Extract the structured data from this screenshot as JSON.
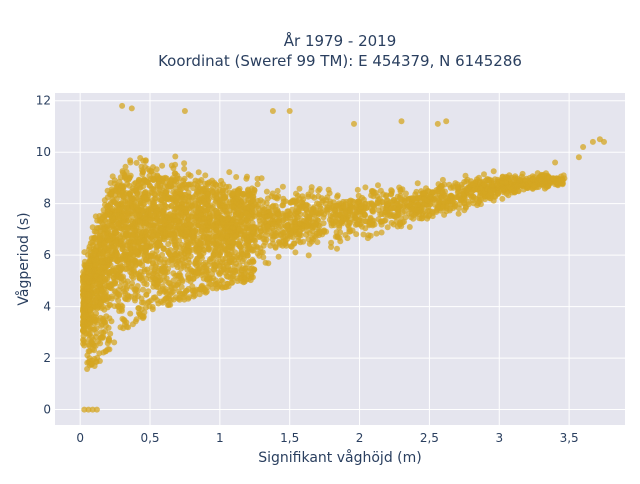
{
  "chart_data": {
    "type": "scatter",
    "title_line1": "År 1979 - 2019",
    "title_line2": "Koordinat (Sweref 99 TM): E 454379, N 6145286",
    "xlabel": "Signifikant våghöjd (m)",
    "ylabel": "Vågperiod (s)",
    "xlim": [
      -0.18,
      3.9
    ],
    "ylim": [
      -0.6,
      12.3
    ],
    "x_ticks": [
      0,
      0.5,
      1,
      1.5,
      2,
      2.5,
      3,
      3.5
    ],
    "x_tick_labels": [
      "0",
      "0,5",
      "1",
      "1,5",
      "2",
      "2,5",
      "3",
      "3,5"
    ],
    "y_ticks": [
      0,
      2,
      4,
      6,
      8,
      10,
      12
    ],
    "y_tick_labels": [
      "0",
      "2",
      "4",
      "6",
      "8",
      "10",
      "12"
    ],
    "grid": true,
    "marker_color": "#d4a521",
    "plot_bg": "#e5e5ee",
    "envelope": {
      "description_of_point_cloud": "dense cloud of hourly observations",
      "lower_bound": [
        [
          0.0,
          1.1
        ],
        [
          0.1,
          1.2
        ],
        [
          0.2,
          1.8
        ],
        [
          0.3,
          2.6
        ],
        [
          0.5,
          3.3
        ],
        [
          0.75,
          3.9
        ],
        [
          1.0,
          4.4
        ],
        [
          1.5,
          5.2
        ],
        [
          2.0,
          5.9
        ],
        [
          2.5,
          6.9
        ],
        [
          3.0,
          7.8
        ],
        [
          3.4,
          8.5
        ]
      ],
      "upper_bound": [
        [
          0.0,
          6.5
        ],
        [
          0.1,
          8.8
        ],
        [
          0.2,
          10.5
        ],
        [
          0.3,
          11.5
        ],
        [
          0.5,
          11.3
        ],
        [
          0.75,
          10.8
        ],
        [
          1.0,
          10.2
        ],
        [
          1.5,
          9.4
        ],
        [
          2.0,
          9.3
        ],
        [
          2.5,
          9.3
        ],
        [
          3.0,
          9.6
        ],
        [
          3.4,
          9.3
        ]
      ]
    },
    "outliers": [
      {
        "x": 0.3,
        "y": 11.8
      },
      {
        "x": 0.37,
        "y": 11.7
      },
      {
        "x": 0.75,
        "y": 11.6
      },
      {
        "x": 1.38,
        "y": 11.6
      },
      {
        "x": 1.5,
        "y": 11.6
      },
      {
        "x": 1.96,
        "y": 11.1
      },
      {
        "x": 2.3,
        "y": 11.2
      },
      {
        "x": 2.56,
        "y": 11.1
      },
      {
        "x": 2.62,
        "y": 11.2
      },
      {
        "x": 3.6,
        "y": 10.2
      },
      {
        "x": 3.67,
        "y": 10.4
      },
      {
        "x": 3.72,
        "y": 10.5
      },
      {
        "x": 3.75,
        "y": 10.4
      },
      {
        "x": 3.57,
        "y": 9.8
      },
      {
        "x": 3.4,
        "y": 9.6
      },
      {
        "x": 0.03,
        "y": 0.0
      },
      {
        "x": 0.06,
        "y": 0.0
      },
      {
        "x": 0.09,
        "y": 0.0
      },
      {
        "x": 0.12,
        "y": 0.0
      }
    ]
  }
}
